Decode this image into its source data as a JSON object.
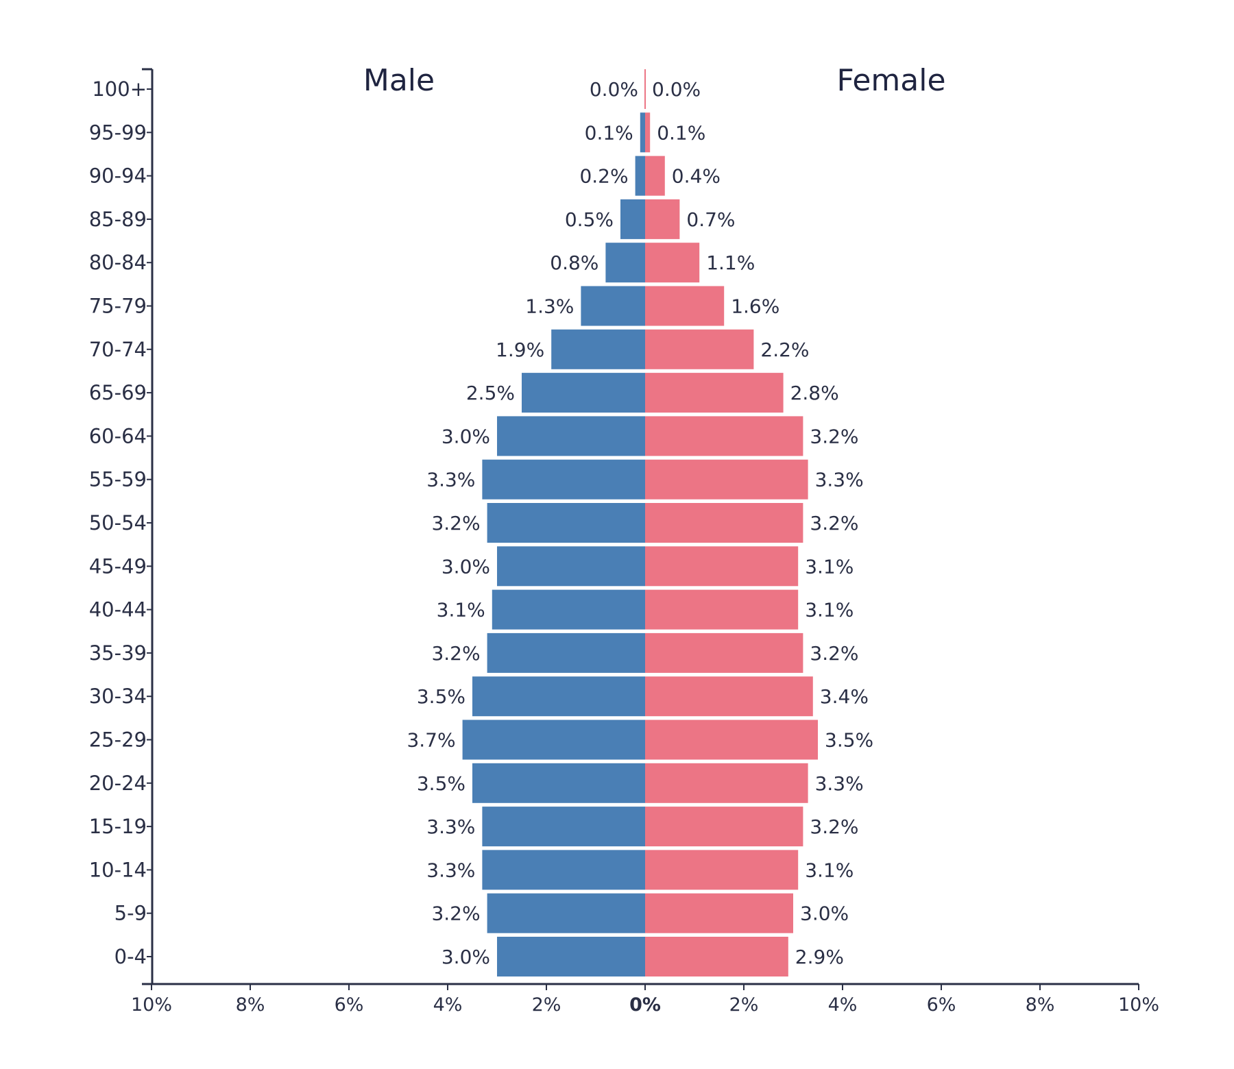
{
  "chart_data": {
    "type": "bar",
    "orientation": "horizontal-butterfly",
    "titles": {
      "left": "Male",
      "right": "Female"
    },
    "categories": [
      "100+",
      "95-99",
      "90-94",
      "85-89",
      "80-84",
      "75-79",
      "70-74",
      "65-69",
      "60-64",
      "55-59",
      "50-54",
      "45-49",
      "40-44",
      "35-39",
      "30-34",
      "25-29",
      "20-24",
      "15-19",
      "10-14",
      "5-9",
      "0-4"
    ],
    "series": [
      {
        "name": "Male",
        "color": "#4a7fb5",
        "values": [
          0.0,
          0.1,
          0.2,
          0.5,
          0.8,
          1.3,
          1.9,
          2.5,
          3.0,
          3.3,
          3.2,
          3.0,
          3.1,
          3.2,
          3.5,
          3.7,
          3.5,
          3.3,
          3.3,
          3.2,
          3.0
        ],
        "labels": [
          "0.0%",
          "0.1%",
          "0.2%",
          "0.5%",
          "0.8%",
          "1.3%",
          "1.9%",
          "2.5%",
          "3.0%",
          "3.3%",
          "3.2%",
          "3.0%",
          "3.1%",
          "3.2%",
          "3.5%",
          "3.7%",
          "3.5%",
          "3.3%",
          "3.3%",
          "3.2%",
          "3.0%"
        ]
      },
      {
        "name": "Female",
        "color": "#ec7585",
        "values": [
          0.0,
          0.1,
          0.4,
          0.7,
          1.1,
          1.6,
          2.2,
          2.8,
          3.2,
          3.3,
          3.2,
          3.1,
          3.1,
          3.2,
          3.4,
          3.5,
          3.3,
          3.2,
          3.1,
          3.0,
          2.9
        ],
        "labels": [
          "0.0%",
          "0.1%",
          "0.4%",
          "0.7%",
          "1.1%",
          "1.6%",
          "2.2%",
          "2.8%",
          "3.2%",
          "3.3%",
          "3.2%",
          "3.1%",
          "3.1%",
          "3.2%",
          "3.4%",
          "3.5%",
          "3.3%",
          "3.2%",
          "3.1%",
          "3.0%",
          "2.9%"
        ]
      }
    ],
    "x_ticks": [
      "10%",
      "8%",
      "6%",
      "4%",
      "2%",
      "0%",
      "2%",
      "4%",
      "6%",
      "8%",
      "10%"
    ],
    "xlim": [
      -10,
      10
    ],
    "grid": false,
    "axis_color": "#2a2f45"
  }
}
